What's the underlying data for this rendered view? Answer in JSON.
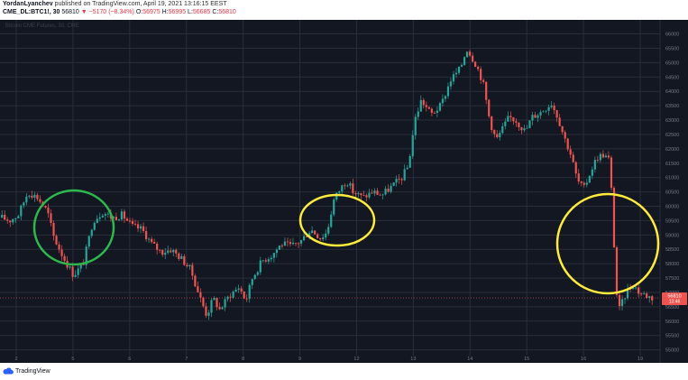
{
  "header": {
    "author": "YordanLyanchev",
    "published": "published on TradingView.com, April 19, 2021 13:16:15 EEST",
    "symbol": "CME_DL:BTC1!, 30",
    "price": "56810",
    "change": "▼ −5170 (−8.34%)",
    "o_label": "O:",
    "o_value": "56975",
    "h_label": "H:",
    "h_value": "56995",
    "l_label": "L:",
    "l_value": "56685",
    "c_label": "C:",
    "c_value": "56810"
  },
  "watermark": "Bitcoin CME Futures, 30, CME",
  "footer": {
    "brand": "TradingView"
  },
  "colors": {
    "background": "#131722",
    "grid": "#2a2e39",
    "up": "#26a69a",
    "down": "#ef5350",
    "green_circle": "#2db84d",
    "yellow_circle": "#ffeb3b",
    "last_price": "#ef5350"
  },
  "chart_data": {
    "type": "candlestick",
    "title": "",
    "x_tick_labels": [
      "2",
      "5",
      "6",
      "7",
      "8",
      "9",
      "12",
      "13",
      "14",
      "15",
      "16",
      "19"
    ],
    "y_tick_labels": [
      "66000",
      "65500",
      "65000",
      "64500",
      "64000",
      "63500",
      "63000",
      "62500",
      "62000",
      "61500",
      "61000",
      "60500",
      "60000",
      "59500",
      "59000",
      "58500",
      "58000",
      "57500",
      "57000",
      "56500",
      "56000",
      "55500",
      "55000"
    ],
    "ylim": [
      54800,
      66300
    ],
    "last_price": {
      "value": 56810,
      "label": "56810",
      "countdown": "13:46"
    },
    "price_path": [
      [
        0,
        59600
      ],
      [
        0.012,
        59500
      ],
      [
        0.025,
        59700
      ],
      [
        0.04,
        60500
      ],
      [
        0.055,
        60300
      ],
      [
        0.07,
        59800
      ],
      [
        0.08,
        58900
      ],
      [
        0.095,
        58200
      ],
      [
        0.11,
        57600
      ],
      [
        0.125,
        58000
      ],
      [
        0.14,
        59500
      ],
      [
        0.155,
        59800
      ],
      [
        0.17,
        59600
      ],
      [
        0.185,
        59700
      ],
      [
        0.2,
        59300
      ],
      [
        0.215,
        59200
      ],
      [
        0.23,
        58700
      ],
      [
        0.245,
        58400
      ],
      [
        0.26,
        58500
      ],
      [
        0.275,
        58200
      ],
      [
        0.29,
        57800
      ],
      [
        0.305,
        56800
      ],
      [
        0.315,
        56200
      ],
      [
        0.325,
        56800
      ],
      [
        0.335,
        56400
      ],
      [
        0.35,
        56900
      ],
      [
        0.365,
        57200
      ],
      [
        0.375,
        56700
      ],
      [
        0.385,
        57500
      ],
      [
        0.4,
        58100
      ],
      [
        0.415,
        58300
      ],
      [
        0.43,
        58700
      ],
      [
        0.445,
        58600
      ],
      [
        0.46,
        58800
      ],
      [
        0.475,
        59200
      ],
      [
        0.49,
        58900
      ],
      [
        0.5,
        59100
      ],
      [
        0.51,
        60200
      ],
      [
        0.52,
        60600
      ],
      [
        0.53,
        60900
      ],
      [
        0.54,
        60500
      ],
      [
        0.555,
        60300
      ],
      [
        0.57,
        60500
      ],
      [
        0.585,
        60400
      ],
      [
        0.6,
        60700
      ],
      [
        0.615,
        61000
      ],
      [
        0.625,
        61400
      ],
      [
        0.635,
        63000
      ],
      [
        0.645,
        63700
      ],
      [
        0.66,
        63200
      ],
      [
        0.675,
        63500
      ],
      [
        0.69,
        64400
      ],
      [
        0.705,
        64800
      ],
      [
        0.715,
        65500
      ],
      [
        0.73,
        64900
      ],
      [
        0.74,
        64300
      ],
      [
        0.75,
        63000
      ],
      [
        0.76,
        62300
      ],
      [
        0.77,
        62700
      ],
      [
        0.78,
        63100
      ],
      [
        0.79,
        63000
      ],
      [
        0.805,
        62600
      ],
      [
        0.815,
        63100
      ],
      [
        0.83,
        63300
      ],
      [
        0.845,
        63600
      ],
      [
        0.855,
        63100
      ],
      [
        0.865,
        62400
      ],
      [
        0.875,
        61800
      ],
      [
        0.885,
        60900
      ],
      [
        0.895,
        60600
      ],
      [
        0.905,
        61200
      ],
      [
        0.915,
        61700
      ],
      [
        0.925,
        61800
      ],
      [
        0.935,
        61600
      ],
      [
        0.945,
        57000
      ],
      [
        0.95,
        56400
      ],
      [
        0.96,
        57000
      ],
      [
        0.97,
        57300
      ],
      [
        0.98,
        57000
      ],
      [
        1.0,
        56810
      ]
    ]
  }
}
